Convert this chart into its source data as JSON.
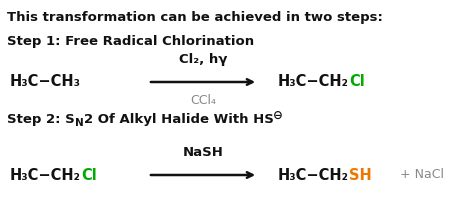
{
  "background_color": "#ffffff",
  "black_color": "#111111",
  "green_color": "#00aa00",
  "orange_color": "#ee7700",
  "gray_color": "#888888",
  "title": "This transformation can be achieved in two steps:",
  "step1_label": "Step 1: Free Radical Chlorination",
  "step2_parts": [
    "Step 2: S",
    "N",
    "2 Of Alkyl Halide With HS",
    "⊖"
  ],
  "rxn1_reagent_above": "Cl₂, hγ",
  "rxn1_reagent_below": "CCl₄",
  "rxn2_reagent_above": "NaSH",
  "nacl_text": "+ NaCl",
  "figw": 4.74,
  "figh": 2.12,
  "dpi": 100
}
